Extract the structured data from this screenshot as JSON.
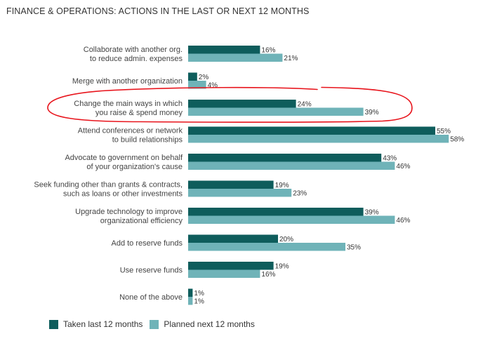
{
  "colors": {
    "taken": "#0e5d5c",
    "planned": "#6fb3b8",
    "annotation": "#e8141c"
  },
  "chart_data": {
    "type": "bar",
    "orientation": "horizontal",
    "title": "FINANCE & OPERATIONS: ACTIONS IN THE LAST OR NEXT 12 MONTHS",
    "categories": [
      [
        "Collaborate with another org.",
        "to reduce admin. expenses"
      ],
      [
        "Merge with another organization"
      ],
      [
        "Change the main ways in which",
        "you raise & spend money"
      ],
      [
        "Attend conferences or network",
        "to build relationships"
      ],
      [
        "Advocate to government on behalf",
        "of your organization's cause"
      ],
      [
        "Seek funding other than grants & contracts,",
        "such as loans or other investments"
      ],
      [
        "Upgrade technology to improve",
        "organizational efficiency"
      ],
      [
        "Add to reserve funds"
      ],
      [
        "Use reserve funds"
      ],
      [
        "None of the above"
      ]
    ],
    "series": [
      {
        "name": "Taken last 12 months",
        "values": [
          16,
          2,
          24,
          55,
          43,
          19,
          39,
          20,
          19,
          1
        ]
      },
      {
        "name": "Planned next 12 months",
        "values": [
          21,
          4,
          39,
          58,
          46,
          23,
          46,
          35,
          16,
          1
        ]
      }
    ],
    "value_suffix": "%",
    "legend_position": "bottom-left",
    "grid": false,
    "annotation": {
      "type": "hand-drawn-ellipse",
      "category_index": 2
    }
  }
}
